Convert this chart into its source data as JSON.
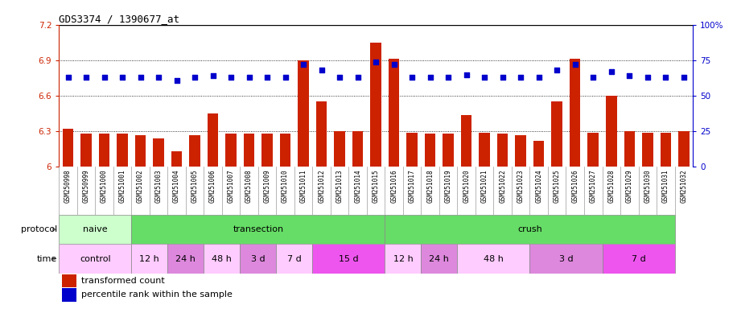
{
  "title": "GDS3374 / 1390677_at",
  "samples": [
    "GSM250998",
    "GSM250999",
    "GSM251000",
    "GSM251001",
    "GSM251002",
    "GSM251003",
    "GSM251004",
    "GSM251005",
    "GSM251006",
    "GSM251007",
    "GSM251008",
    "GSM251009",
    "GSM251010",
    "GSM251011",
    "GSM251012",
    "GSM251013",
    "GSM251014",
    "GSM251015",
    "GSM251016",
    "GSM251017",
    "GSM251018",
    "GSM251019",
    "GSM251020",
    "GSM251021",
    "GSM251022",
    "GSM251023",
    "GSM251024",
    "GSM251025",
    "GSM251026",
    "GSM251027",
    "GSM251028",
    "GSM251029",
    "GSM251030",
    "GSM251031",
    "GSM251032"
  ],
  "bar_values": [
    6.32,
    6.28,
    6.28,
    6.28,
    6.27,
    6.24,
    6.13,
    6.27,
    6.45,
    6.28,
    6.28,
    6.28,
    6.28,
    6.9,
    6.55,
    6.3,
    6.3,
    7.05,
    6.91,
    6.29,
    6.28,
    6.28,
    6.44,
    6.29,
    6.28,
    6.27,
    6.22,
    6.55,
    6.91,
    6.29,
    6.6,
    6.3,
    6.29,
    6.29,
    6.3
  ],
  "percentile_values": [
    63,
    63,
    63,
    63,
    63,
    63,
    61,
    63,
    64,
    63,
    63,
    63,
    63,
    72,
    68,
    63,
    63,
    74,
    72,
    63,
    63,
    63,
    65,
    63,
    63,
    63,
    63,
    68,
    72,
    63,
    67,
    64,
    63,
    63,
    63
  ],
  "ylim_left": [
    6.0,
    7.2
  ],
  "ylim_right": [
    0,
    100
  ],
  "yticks_left": [
    6.0,
    6.3,
    6.6,
    6.9,
    7.2
  ],
  "yticks_right": [
    0,
    25,
    50,
    75,
    100
  ],
  "ytick_labels_left": [
    "6",
    "6.3",
    "6.6",
    "6.9",
    "7.2"
  ],
  "ytick_labels_right": [
    "0",
    "25",
    "50",
    "75",
    "100%"
  ],
  "hlines": [
    6.3,
    6.6,
    6.9
  ],
  "bar_color": "#cc2200",
  "dot_color": "#0000cc",
  "bg_color": "#ffffff",
  "xtick_bg": "#d8d8d8",
  "protocol_blocks": [
    {
      "label": "naive",
      "start": 0,
      "end": 4,
      "color": "#ccffcc"
    },
    {
      "label": "transection",
      "start": 4,
      "end": 18,
      "color": "#66dd66"
    },
    {
      "label": "crush",
      "start": 18,
      "end": 34,
      "color": "#66dd66"
    }
  ],
  "time_blocks": [
    {
      "label": "control",
      "start": 0,
      "end": 4,
      "color": "#ffccff"
    },
    {
      "label": "12 h",
      "start": 4,
      "end": 6,
      "color": "#ffccff"
    },
    {
      "label": "24 h",
      "start": 6,
      "end": 8,
      "color": "#dd88dd"
    },
    {
      "label": "48 h",
      "start": 8,
      "end": 10,
      "color": "#ffccff"
    },
    {
      "label": "3 d",
      "start": 10,
      "end": 12,
      "color": "#dd88dd"
    },
    {
      "label": "7 d",
      "start": 12,
      "end": 14,
      "color": "#ffccff"
    },
    {
      "label": "15 d",
      "start": 14,
      "end": 18,
      "color": "#ee55ee"
    },
    {
      "label": "12 h",
      "start": 18,
      "end": 20,
      "color": "#ffccff"
    },
    {
      "label": "24 h",
      "start": 20,
      "end": 22,
      "color": "#dd88dd"
    },
    {
      "label": "48 h",
      "start": 22,
      "end": 26,
      "color": "#ffccff"
    },
    {
      "label": "3 d",
      "start": 26,
      "end": 30,
      "color": "#dd88dd"
    },
    {
      "label": "7 d",
      "start": 30,
      "end": 34,
      "color": "#ee55ee"
    }
  ],
  "legend_items": [
    {
      "label": "transformed count",
      "color": "#cc2200"
    },
    {
      "label": "percentile rank within the sample",
      "color": "#0000cc"
    }
  ]
}
